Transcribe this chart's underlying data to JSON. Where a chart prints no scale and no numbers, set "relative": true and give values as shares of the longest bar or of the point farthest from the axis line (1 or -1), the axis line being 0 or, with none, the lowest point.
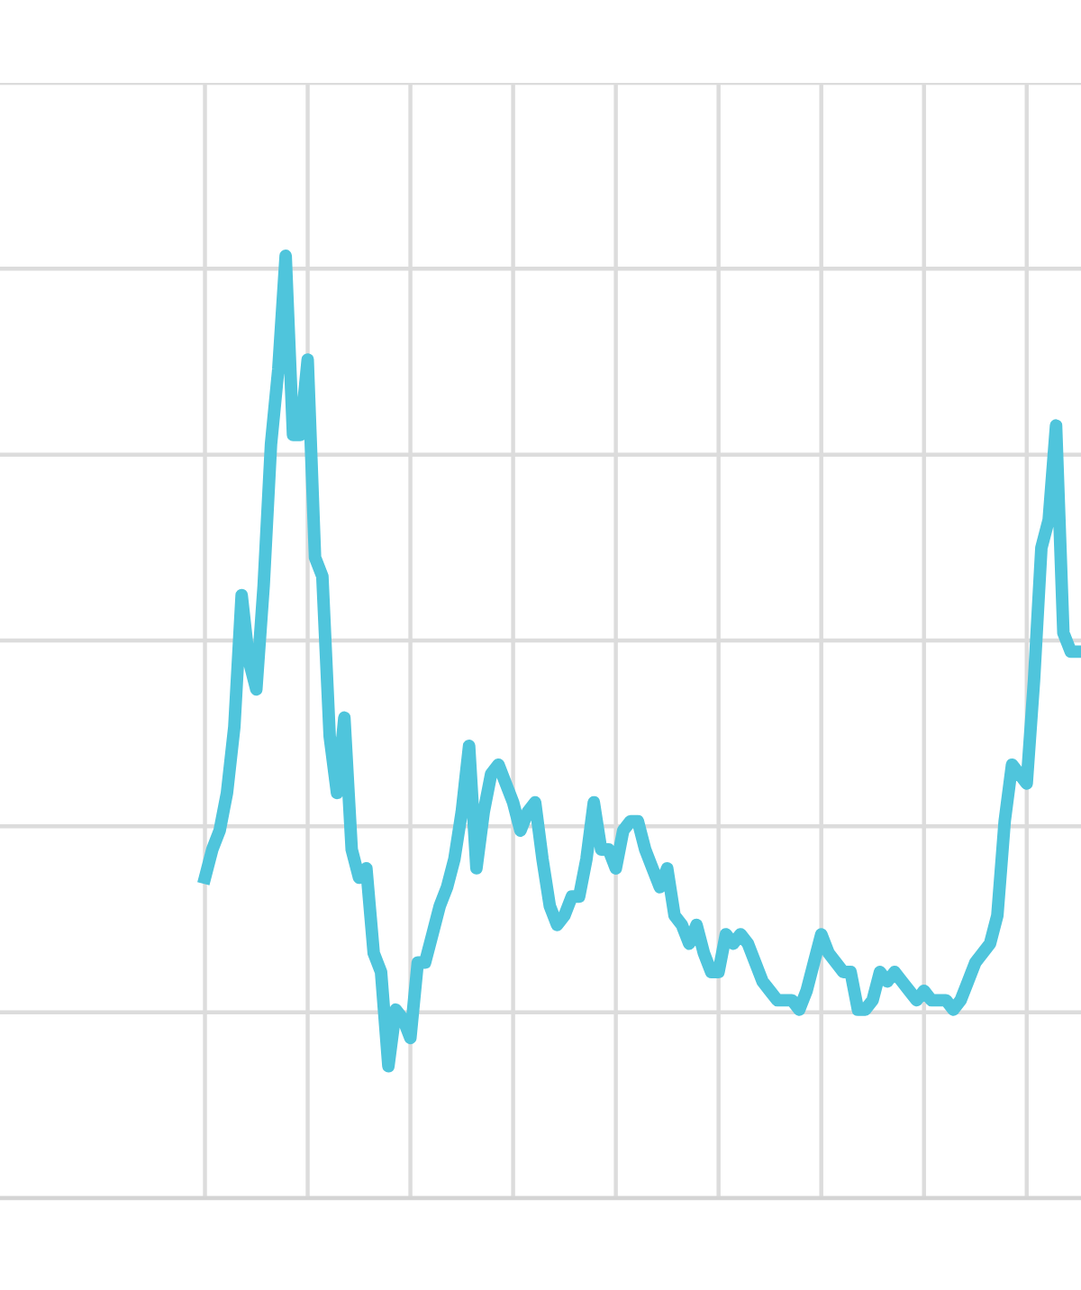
{
  "chart_data": {
    "type": "line",
    "relative": true,
    "grid": true,
    "color": "#4fc5dc",
    "categories": [
      null,
      null,
      null,
      null,
      null,
      null,
      null,
      null,
      null,
      null,
      null,
      null,
      null,
      null,
      null,
      null,
      null,
      null,
      null,
      null,
      null,
      null,
      null,
      null,
      null,
      null,
      null,
      null,
      null,
      null,
      null,
      null,
      null,
      null,
      null,
      null,
      null,
      null,
      null,
      null,
      null,
      null,
      null,
      null,
      null,
      null,
      null,
      null,
      null,
      null,
      null,
      null,
      null,
      null,
      null,
      null,
      null,
      null,
      null,
      null,
      null,
      null,
      null,
      null,
      null,
      null,
      null,
      null,
      null,
      null,
      null,
      null,
      null,
      null,
      null,
      null,
      null,
      null,
      null,
      null,
      null,
      null,
      null,
      null,
      null,
      null,
      null,
      null,
      null,
      null,
      null,
      null,
      null,
      null,
      null,
      null,
      null,
      null,
      null,
      null,
      null,
      null,
      null,
      null,
      null,
      null,
      null,
      null,
      null,
      null,
      null,
      null,
      null,
      null,
      null,
      null,
      null,
      null,
      null,
      null
    ],
    "values": [
      0.34,
      0.37,
      0.39,
      0.43,
      0.5,
      0.64,
      0.57,
      0.54,
      0.65,
      0.8,
      0.88,
      1,
      0.81,
      0.81,
      0.89,
      0.68,
      0.66,
      0.49,
      0.43,
      0.51,
      0.37,
      0.34,
      0.35,
      0.26,
      0.24,
      0.14,
      0.2,
      0.19,
      0.17,
      0.25,
      0.25,
      0.28,
      0.31,
      0.33,
      0.36,
      0.41,
      0.48,
      0.35,
      0.41,
      0.45,
      0.46,
      0.44,
      0.42,
      0.39,
      0.41,
      0.42,
      0.36,
      0.31,
      0.29,
      0.3,
      0.32,
      0.32,
      0.36,
      0.42,
      0.37,
      0.37,
      0.35,
      0.39,
      0.4,
      0.4,
      0.37,
      0.35,
      0.33,
      0.35,
      0.3,
      0.29,
      0.27,
      0.29,
      0.26,
      0.24,
      0.24,
      0.28,
      0.27,
      0.28,
      0.27,
      0.25,
      0.23,
      0.22,
      0.21,
      0.21,
      0.21,
      0.2,
      0.22,
      0.25,
      0.28,
      0.26,
      0.25,
      0.24,
      0.24,
      0.2,
      0.2,
      0.21,
      0.24,
      0.23,
      0.24,
      0.23,
      0.22,
      0.21,
      0.22,
      0.21,
      0.21,
      0.21,
      0.2,
      0.21,
      0.23,
      0.25,
      0.26,
      0.27,
      0.3,
      0.4,
      0.46,
      0.45,
      0.44,
      0.55,
      0.69,
      0.72,
      0.82,
      0.6,
      0.58,
      0.58
    ]
  }
}
